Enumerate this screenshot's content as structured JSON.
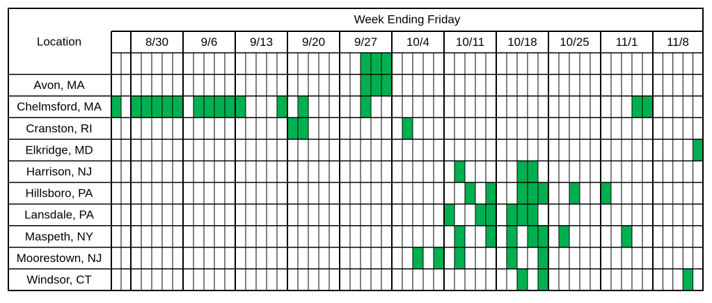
{
  "header": {
    "location": "Location",
    "title": "Week Ending Friday"
  },
  "weeks": [
    "8/30",
    "9/6",
    "9/13",
    "9/20",
    "9/27",
    "10/4",
    "10/11",
    "10/18",
    "10/25",
    "11/1",
    "11/8"
  ],
  "rows": [
    {
      "label": null,
      "filled": [
        24,
        25,
        26
      ]
    },
    {
      "label": "Avon, MA",
      "filled": [
        24,
        25,
        26
      ]
    },
    {
      "label": "Chelmsford, MA",
      "filled": [
        0,
        2,
        3,
        4,
        5,
        6,
        8,
        9,
        10,
        11,
        12,
        16,
        18,
        24,
        50,
        51
      ]
    },
    {
      "label": "Cranston, RI",
      "filled": [
        17,
        18,
        28
      ]
    },
    {
      "label": "Elkridge, MD",
      "filled": [
        56
      ]
    },
    {
      "label": "Harrison, NJ",
      "filled": [
        33,
        39,
        40
      ]
    },
    {
      "label": "Hillsboro, PA",
      "filled": [
        34,
        36,
        39,
        40,
        41,
        44,
        47
      ]
    },
    {
      "label": "Lansdale, PA",
      "filled": [
        32,
        35,
        36,
        38,
        39,
        40
      ]
    },
    {
      "label": "Maspeth, NY",
      "filled": [
        33,
        36,
        38,
        40,
        41,
        43,
        49
      ]
    },
    {
      "label": "Moorestown, NJ",
      "filled": [
        29,
        31,
        33,
        38,
        41
      ]
    },
    {
      "label": "Windsor, CT",
      "filled": [
        39,
        41,
        55
      ]
    }
  ]
}
